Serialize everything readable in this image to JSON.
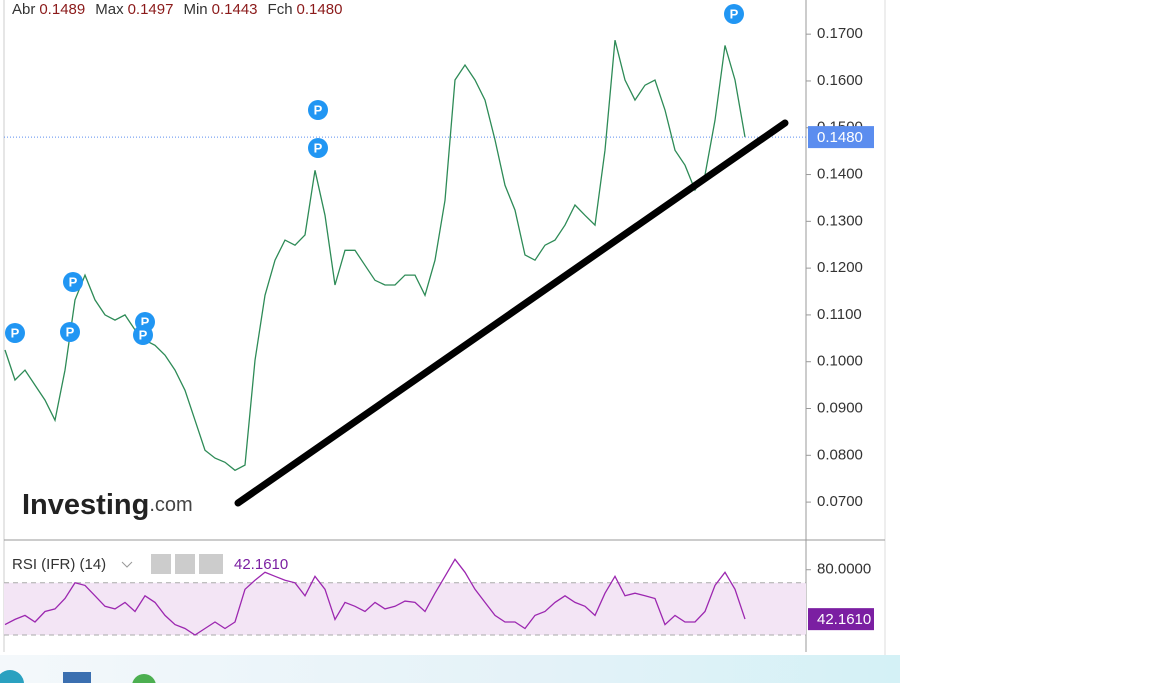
{
  "chart_data": [
    {
      "type": "line",
      "ohlc_names": [
        "Abr",
        "Max",
        "Min",
        "Fch"
      ],
      "ohlc_values": [
        0.1489,
        0.1497,
        0.1443,
        0.148
      ],
      "ohlc_value_labels": [
        "0.1489",
        "0.1497",
        "0.1443",
        "0.1480"
      ],
      "watermark": "Investing",
      "watermark_suffix": ".com",
      "annotation": "P",
      "categories": [
        null,
        null,
        null,
        null,
        null,
        null,
        null,
        null,
        null,
        null,
        null,
        null,
        null,
        null,
        null,
        null,
        null,
        null,
        null,
        null,
        null,
        null,
        null,
        null,
        null,
        null,
        null,
        null,
        null,
        null,
        null,
        null,
        null,
        null,
        null,
        null,
        null,
        null,
        null,
        null,
        null,
        null,
        null,
        null,
        null,
        null,
        null,
        null,
        null,
        null,
        null,
        null,
        null,
        null,
        null,
        null,
        null,
        null,
        null,
        null,
        null,
        null,
        null,
        null,
        null,
        null,
        null,
        null,
        null,
        null,
        null,
        null,
        null,
        null,
        null
      ],
      "values": [
        0.1025,
        0.0961,
        0.0982,
        0.095,
        0.0918,
        0.0875,
        0.0982,
        0.1132,
        0.1185,
        0.1132,
        0.11,
        0.1089,
        0.11,
        0.1068,
        0.1046,
        0.1035,
        0.1014,
        0.0982,
        0.0939,
        0.0875,
        0.0811,
        0.0794,
        0.0785,
        0.0768,
        0.0779,
        0.1003,
        0.1142,
        0.1217,
        0.126,
        0.1249,
        0.1271,
        0.1409,
        0.1313,
        0.1164,
        0.1238,
        0.1238,
        0.1206,
        0.1174,
        0.1164,
        0.1164,
        0.1185,
        0.1185,
        0.1142,
        0.1217,
        0.1345,
        0.1602,
        0.1634,
        0.1602,
        0.1559,
        0.1474,
        0.1377,
        0.1324,
        0.1228,
        0.1217,
        0.1249,
        0.126,
        0.1292,
        0.1335,
        0.1313,
        0.1292,
        0.1452,
        0.1687,
        0.1602,
        0.1559,
        0.1591,
        0.1602,
        0.1538,
        0.1452,
        0.142,
        0.1367,
        0.1399,
        0.1516,
        0.1676,
        0.1602,
        0.148
      ],
      "color": "#2e8b57",
      "ylim": [
        0.0619,
        0.1773
      ],
      "yticks": [
        {
          "value": 0.07,
          "label": "0.0700"
        },
        {
          "value": 0.08,
          "label": "0.0800"
        },
        {
          "value": 0.09,
          "label": "0.0900"
        },
        {
          "value": 0.1,
          "label": "0.1000"
        },
        {
          "value": 0.11,
          "label": "0.1100"
        },
        {
          "value": 0.12,
          "label": "0.1200"
        },
        {
          "value": 0.13,
          "label": "0.1300"
        },
        {
          "value": 0.14,
          "label": "0.1400"
        },
        {
          "value": 0.15,
          "label": "0.1500"
        },
        {
          "value": 0.16,
          "label": "0.1600"
        },
        {
          "value": 0.17,
          "label": "0.1700"
        }
      ],
      "last_label": {
        "value": 0.148,
        "label": "0.1480"
      },
      "last_color": "#5b8def"
    },
    {
      "type": "line",
      "title": "RSI (IFR) (14)",
      "categories": [
        null,
        null,
        null,
        null,
        null,
        null,
        null,
        null,
        null,
        null,
        null,
        null,
        null,
        null,
        null,
        null,
        null,
        null,
        null,
        null,
        null,
        null,
        null,
        null,
        null,
        null,
        null,
        null,
        null,
        null,
        null,
        null,
        null,
        null,
        null,
        null,
        null,
        null,
        null,
        null,
        null,
        null,
        null,
        null,
        null,
        null,
        null,
        null,
        null,
        null,
        null,
        null,
        null,
        null,
        null,
        null,
        null,
        null,
        null,
        null,
        null,
        null,
        null,
        null,
        null,
        null,
        null,
        null,
        null,
        null,
        null,
        null,
        null,
        null,
        null
      ],
      "values": [
        38,
        42,
        45,
        40,
        48,
        50,
        58,
        70,
        68,
        60,
        52,
        50,
        55,
        48,
        60,
        55,
        45,
        38,
        35,
        30,
        35,
        40,
        35,
        40,
        65,
        72,
        78,
        75,
        72,
        70,
        60,
        75,
        65,
        42,
        55,
        52,
        48,
        55,
        50,
        52,
        56,
        55,
        48,
        62,
        75,
        88,
        78,
        65,
        55,
        45,
        40,
        40,
        35,
        45,
        48,
        55,
        60,
        55,
        52,
        45,
        62,
        75,
        60,
        62,
        60,
        58,
        38,
        45,
        40,
        40,
        48,
        68,
        78,
        65,
        42.161
      ],
      "color": "#9c27b0",
      "ylim": [
        17,
        102
      ],
      "yticks": [
        {
          "value": 80,
          "label": "80.0000"
        }
      ],
      "band": [
        30,
        70
      ],
      "band_color": "#f3e5f5",
      "last_label": {
        "value": 42.161,
        "label": "42.1610"
      },
      "last_color": "#7b1fa2"
    }
  ]
}
